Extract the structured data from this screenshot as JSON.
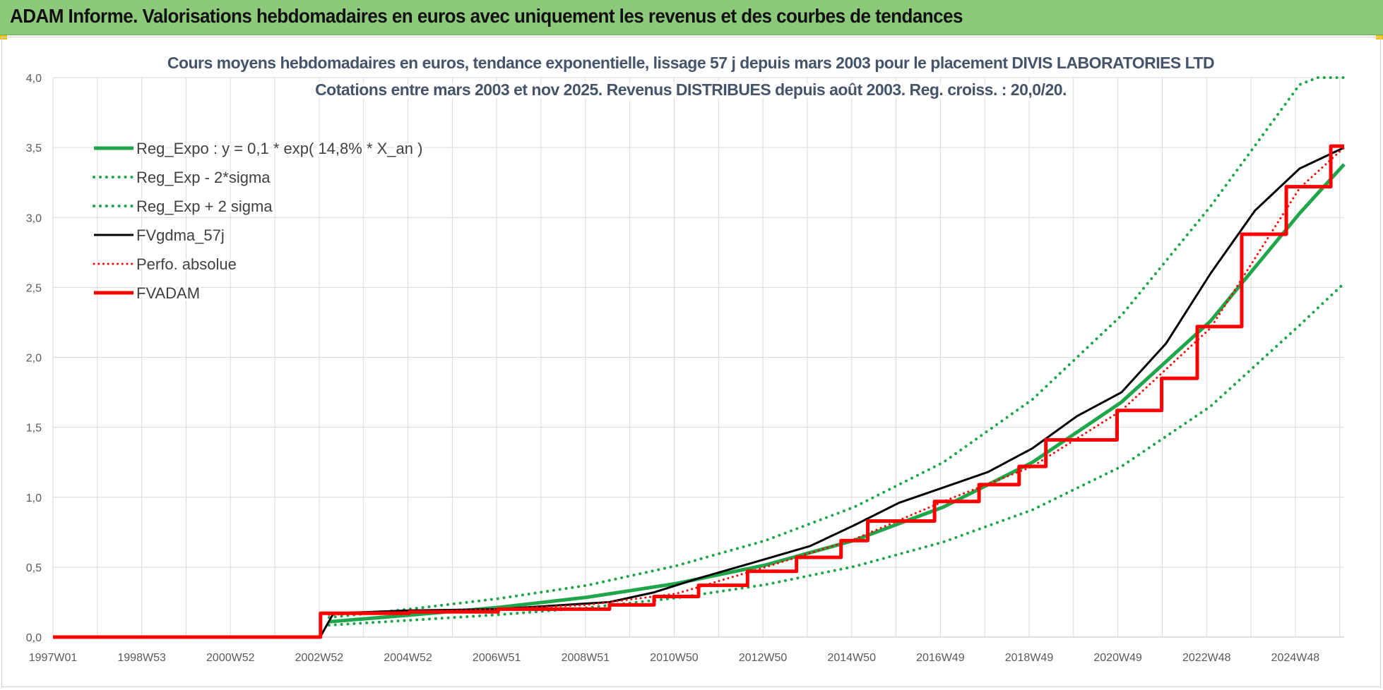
{
  "header": {
    "title": "ADAM Informe. Valorisations hebdomadaires en euros avec uniquement les revenus et des courbes de tendances"
  },
  "colors": {
    "header_bg": "#8dc97a",
    "green": "#1fa64a",
    "black": "#000000",
    "red": "#ff0000",
    "grid": "#d9d9d9"
  },
  "chart_data": {
    "type": "line",
    "title_lines": [
      "Cours moyens hebdomadaires en euros, tendance exponentielle, lissage 57 j depuis mars 2003 pour le placement DIVIS LABORATORIES LTD",
      "Cotations entre mars 2003 et nov 2025. Revenus DISTRIBUES depuis août 2003. Reg. croiss. : 20,0/20."
    ],
    "x_ticks": [
      "1997W01",
      "1998W53",
      "2000W52",
      "2002W52",
      "2004W52",
      "2006W51",
      "2008W51",
      "2010W50",
      "2012W50",
      "2014W50",
      "2016W49",
      "2018W49",
      "2020W49",
      "2022W48",
      "2024W48"
    ],
    "x_range": [
      1997.0,
      2026.0
    ],
    "x_unit": "year",
    "ylim": [
      0,
      4.0
    ],
    "y_ticks": [
      "0,0",
      "0,5",
      "1,0",
      "1,5",
      "2,0",
      "2,5",
      "3,0",
      "3,5",
      "4,0"
    ],
    "y_tick_values": [
      0,
      0.5,
      1.0,
      1.5,
      2.0,
      2.5,
      3.0,
      3.5,
      4.0
    ],
    "legend_position": "top-left",
    "grid": true,
    "series": [
      {
        "name": "Reg_Expo : y = 0,1 * exp( 14,8% *  X_an )",
        "color": "#1fa64a",
        "style": "solid",
        "width": 5,
        "x": [
          2003.2,
          2005,
          2007,
          2009,
          2011,
          2013,
          2015,
          2017,
          2019,
          2021,
          2023,
          2025,
          2026
        ],
        "y": [
          0.11,
          0.157,
          0.212,
          0.285,
          0.383,
          0.515,
          0.692,
          0.93,
          1.25,
          1.68,
          2.26,
          3.03,
          3.38
        ]
      },
      {
        "name": "Reg_Exp - 2*sigma",
        "color": "#1fa64a",
        "style": "dotted",
        "width": 4,
        "x": [
          2003.2,
          2005,
          2007,
          2009,
          2011,
          2013,
          2015,
          2017,
          2019,
          2021,
          2023,
          2025,
          2026
        ],
        "y": [
          0.085,
          0.12,
          0.16,
          0.21,
          0.28,
          0.375,
          0.505,
          0.68,
          0.91,
          1.22,
          1.65,
          2.23,
          2.53
        ]
      },
      {
        "name": "Reg_Exp + 2 sigma",
        "color": "#1fa64a",
        "style": "dotted",
        "width": 4,
        "x": [
          2003.2,
          2005,
          2007,
          2009,
          2011,
          2013,
          2015,
          2017,
          2019,
          2021,
          2023,
          2025,
          2025.4,
          2026
        ],
        "y": [
          0.14,
          0.2,
          0.275,
          0.37,
          0.51,
          0.69,
          0.93,
          1.25,
          1.7,
          2.3,
          3.08,
          3.95,
          4.0,
          4.0
        ]
      },
      {
        "name": "FVgdma_57j",
        "color": "#000000",
        "style": "solid",
        "width": 3,
        "x": [
          1997.0,
          2003.0,
          2003.3,
          2005,
          2007,
          2008,
          2009.5,
          2010.5,
          2011.5,
          2012.7,
          2014,
          2015,
          2016,
          2017,
          2018,
          2019,
          2020,
          2021,
          2022,
          2023,
          2024,
          2025,
          2026
        ],
        "y": [
          0,
          0,
          0.17,
          0.19,
          0.2,
          0.22,
          0.25,
          0.32,
          0.42,
          0.53,
          0.65,
          0.8,
          0.96,
          1.07,
          1.18,
          1.35,
          1.58,
          1.75,
          2.1,
          2.6,
          3.05,
          3.35,
          3.5
        ]
      },
      {
        "name": "Perfo. absolue",
        "color": "#ff0000",
        "style": "dotted",
        "width": 3,
        "x": [
          2003.2,
          2005,
          2007,
          2009,
          2011,
          2013,
          2015,
          2017,
          2019,
          2021,
          2023,
          2025,
          2026
        ],
        "y": [
          0.16,
          0.18,
          0.2,
          0.23,
          0.31,
          0.5,
          0.7,
          0.97,
          1.22,
          1.62,
          2.21,
          3.21,
          3.5
        ]
      },
      {
        "name": "FVADAM",
        "color": "#ff0000",
        "style": "solid",
        "width": 5,
        "step": true,
        "x": [
          1997.0,
          2003.0,
          2003.01,
          2005.0,
          2007.0,
          2009.5,
          2010.5,
          2011.5,
          2012.6,
          2013.7,
          2014.7,
          2015.3,
          2016.8,
          2017.8,
          2018.7,
          2019.3,
          2020.9,
          2021.9,
          2022.7,
          2023.7,
          2024.7,
          2025.7,
          2026.0
        ],
        "y": [
          0,
          0,
          0.17,
          0.18,
          0.2,
          0.23,
          0.29,
          0.37,
          0.47,
          0.57,
          0.69,
          0.83,
          0.97,
          1.09,
          1.22,
          1.41,
          1.62,
          1.85,
          2.22,
          2.88,
          3.22,
          3.51,
          3.51
        ]
      }
    ]
  }
}
